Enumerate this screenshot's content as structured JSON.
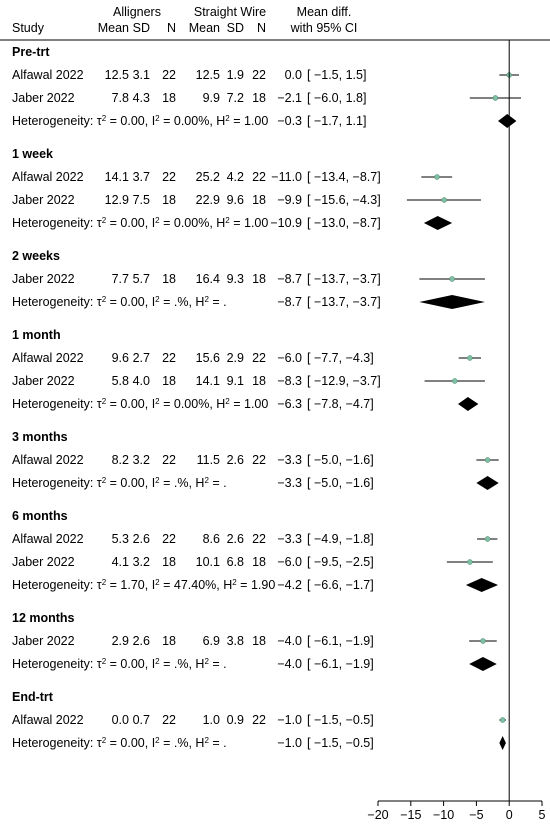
{
  "chart_data": {
    "type": "forest",
    "columns": {
      "study": "Study",
      "group1": "Alligners",
      "group2": "Straight Wire",
      "effect": "Mean diff.",
      "ci": "with 95% CI",
      "stat_labels": [
        "Mean",
        "SD",
        "N",
        "Mean",
        "SD",
        "N"
      ]
    },
    "x_axis": {
      "range": [
        -20,
        5
      ],
      "ticks": [
        -20,
        -15,
        -10,
        -5,
        0,
        5
      ],
      "tick_labels": [
        "−20",
        "−15",
        "−10",
        "−5",
        "0",
        "5"
      ]
    },
    "colors": {
      "point": "#7fbfa4",
      "diamond": "#000000",
      "line": "#000000"
    },
    "groups": [
      {
        "label": "Pre-trt",
        "studies": [
          {
            "study": "Alfawal 2022",
            "m1": "12.5",
            "sd1": "3.1",
            "n1": "22",
            "m2": "12.5",
            "sd2": "1.9",
            "n2": "22",
            "es_text": "0.0",
            "ci_text": "[ −1.5,   1.5]",
            "es": 0.0,
            "lo": -1.5,
            "hi": 1.5
          },
          {
            "study": "Jaber 2022",
            "m1": "7.8",
            "sd1": "4.3",
            "n1": "18",
            "m2": "9.9",
            "sd2": "7.2",
            "n2": "18",
            "es_text": "−2.1",
            "ci_text": "[ −6.0,   1.8]",
            "es": -2.1,
            "lo": -6.0,
            "hi": 1.8
          }
        ],
        "het": {
          "tau2": "0.00",
          "i2": "0.00%",
          "h2": "1.00",
          "es_text": "−0.3",
          "ci_text": "[ −1.7,   1.1]",
          "es": -0.3,
          "lo": -1.7,
          "hi": 1.1
        }
      },
      {
        "label": "1 week",
        "studies": [
          {
            "study": "Alfawal 2022",
            "m1": "14.1",
            "sd1": "3.7",
            "n1": "22",
            "m2": "25.2",
            "sd2": "4.2",
            "n2": "22",
            "es_text": "−11.0",
            "ci_text": "[ −13.4,  −8.7]",
            "es": -11.0,
            "lo": -13.4,
            "hi": -8.7
          },
          {
            "study": "Jaber 2022",
            "m1": "12.9",
            "sd1": "7.5",
            "n1": "18",
            "m2": "22.9",
            "sd2": "9.6",
            "n2": "18",
            "es_text": "−9.9",
            "ci_text": "[ −15.6,  −4.3]",
            "es": -9.9,
            "lo": -15.6,
            "hi": -4.3
          }
        ],
        "het": {
          "tau2": "0.00",
          "i2": "0.00%",
          "h2": "1.00",
          "es_text": "−10.9",
          "ci_text": "[ −13.0,  −8.7]",
          "es": -10.9,
          "lo": -13.0,
          "hi": -8.7
        }
      },
      {
        "label": "2 weeks",
        "studies": [
          {
            "study": "Jaber 2022",
            "m1": "7.7",
            "sd1": "5.7",
            "n1": "18",
            "m2": "16.4",
            "sd2": "9.3",
            "n2": "18",
            "es_text": "−8.7",
            "ci_text": "[ −13.7,  −3.7]",
            "es": -8.7,
            "lo": -13.7,
            "hi": -3.7
          }
        ],
        "het": {
          "tau2": "0.00",
          "i2": ".%",
          "h2": ".",
          "es_text": "−8.7",
          "ci_text": "[ −13.7,  −3.7]",
          "es": -8.7,
          "lo": -13.7,
          "hi": -3.7
        }
      },
      {
        "label": "1 month",
        "studies": [
          {
            "study": "Alfawal 2022",
            "m1": "9.6",
            "sd1": "2.7",
            "n1": "22",
            "m2": "15.6",
            "sd2": "2.9",
            "n2": "22",
            "es_text": "−6.0",
            "ci_text": "[  −7.7,  −4.3]",
            "es": -6.0,
            "lo": -7.7,
            "hi": -4.3
          },
          {
            "study": "Jaber 2022",
            "m1": "5.8",
            "sd1": "4.0",
            "n1": "18",
            "m2": "14.1",
            "sd2": "9.1",
            "n2": "18",
            "es_text": "−8.3",
            "ci_text": "[ −12.9,  −3.7]",
            "es": -8.3,
            "lo": -12.9,
            "hi": -3.7
          }
        ],
        "het": {
          "tau2": "0.00",
          "i2": "0.00%",
          "h2": "1.00",
          "es_text": "−6.3",
          "ci_text": "[  −7.8,  −4.7]",
          "es": -6.3,
          "lo": -7.8,
          "hi": -4.7
        }
      },
      {
        "label": "3 months",
        "studies": [
          {
            "study": "Alfawal 2022",
            "m1": "8.2",
            "sd1": "3.2",
            "n1": "22",
            "m2": "11.5",
            "sd2": "2.6",
            "n2": "22",
            "es_text": "−3.3",
            "ci_text": "[  −5.0,  −1.6]",
            "es": -3.3,
            "lo": -5.0,
            "hi": -1.6
          }
        ],
        "het": {
          "tau2": "0.00",
          "i2": ".%",
          "h2": ".",
          "es_text": "−3.3",
          "ci_text": "[  −5.0,  −1.6]",
          "es": -3.3,
          "lo": -5.0,
          "hi": -1.6
        }
      },
      {
        "label": "6 months",
        "studies": [
          {
            "study": "Alfawal 2022",
            "m1": "5.3",
            "sd1": "2.6",
            "n1": "22",
            "m2": "8.6",
            "sd2": "2.6",
            "n2": "22",
            "es_text": "−3.3",
            "ci_text": "[  −4.9,  −1.8]",
            "es": -3.3,
            "lo": -4.9,
            "hi": -1.8
          },
          {
            "study": "Jaber 2022",
            "m1": "4.1",
            "sd1": "3.2",
            "n1": "18",
            "m2": "10.1",
            "sd2": "6.8",
            "n2": "18",
            "es_text": "−6.0",
            "ci_text": "[  −9.5,  −2.5]",
            "es": -6.0,
            "lo": -9.5,
            "hi": -2.5
          }
        ],
        "het": {
          "tau2": "1.70",
          "i2": "47.40%",
          "h2": "1.90",
          "es_text": "−4.2",
          "ci_text": "[  −6.6,  −1.7]",
          "es": -4.2,
          "lo": -6.6,
          "hi": -1.7
        }
      },
      {
        "label": "12 months",
        "studies": [
          {
            "study": "Jaber 2022",
            "m1": "2.9",
            "sd1": "2.6",
            "n1": "18",
            "m2": "6.9",
            "sd2": "3.8",
            "n2": "18",
            "es_text": "−4.0",
            "ci_text": "[  −6.1,  −1.9]",
            "es": -4.0,
            "lo": -6.1,
            "hi": -1.9
          }
        ],
        "het": {
          "tau2": "0.00",
          "i2": ".%",
          "h2": ".",
          "es_text": "−4.0",
          "ci_text": "[  −6.1,  −1.9]",
          "es": -4.0,
          "lo": -6.1,
          "hi": -1.9
        }
      },
      {
        "label": "End-trt",
        "studies": [
          {
            "study": "Alfawal 2022",
            "m1": "0.0",
            "sd1": "0.7",
            "n1": "22",
            "m2": "1.0",
            "sd2": "0.9",
            "n2": "22",
            "es_text": "−1.0",
            "ci_text": "[  −1.5,  −0.5]",
            "es": -1.0,
            "lo": -1.5,
            "hi": -0.5
          }
        ],
        "het": {
          "tau2": "0.00",
          "i2": ".%",
          "h2": ".",
          "es_text": "−1.0",
          "ci_text": "[  −1.5,  −0.5]",
          "es": -1.0,
          "lo": -1.5,
          "hi": -0.5
        }
      }
    ]
  }
}
